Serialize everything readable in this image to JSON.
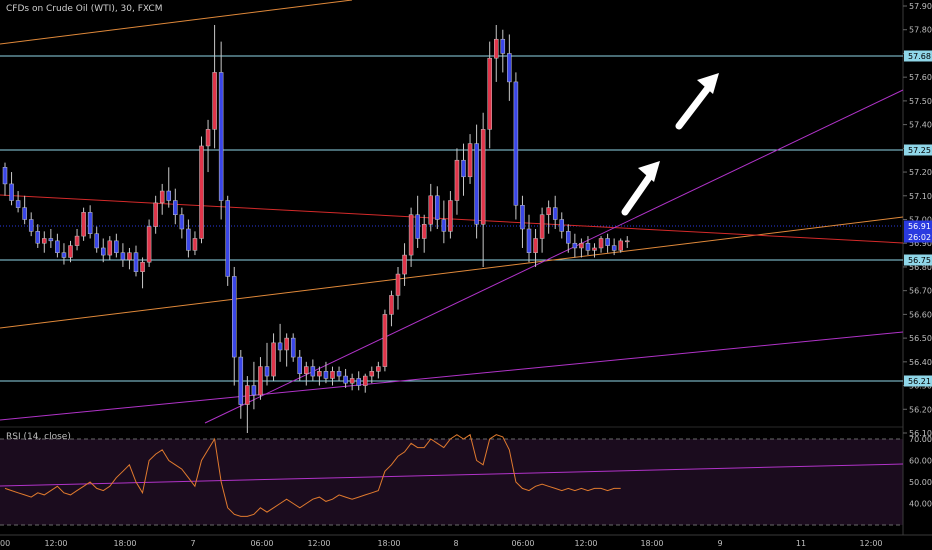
{
  "header": {
    "title": "CFDs on Crude Oil (WTI), 30, FXCM"
  },
  "rsi": {
    "label": "RSI (14, close)",
    "ticks": [
      "70.00",
      "60.00",
      "50.00",
      "40.00"
    ]
  },
  "colors": {
    "up": "#e0354a",
    "down": "#3a46e8",
    "background": "#000000",
    "rsi_line": "#e07a2e",
    "rsi_band": "#1b0c1e",
    "rsi_trend": "#b033c8",
    "trend_red": "#d42a2a",
    "trend_orange": "#e0893a",
    "trend_purple": "#b033c8",
    "hline": "#8fd6e8",
    "current": "#2a3ae0",
    "arrow": "#ffffff"
  },
  "chart_data": {
    "type": "candlestick",
    "ylim": [
      56.03,
      57.94
    ],
    "y_ticks": [
      "57.90",
      "57.80",
      "57.70",
      "57.60",
      "57.50",
      "57.40",
      "57.30",
      "57.20",
      "57.10",
      "57.00",
      "56.90",
      "56.80",
      "56.70",
      "56.60",
      "56.50",
      "56.40",
      "56.30",
      "56.20",
      "56.10"
    ],
    "x_ticks": [
      "00",
      "12:00",
      "18:00",
      "7",
      "06:00",
      "12:00",
      "18:00",
      "8",
      "06:00",
      "12:00",
      "18:00",
      "9",
      "11",
      "12:00"
    ],
    "price_tags": [
      "57.68",
      "57.25",
      "56.91",
      "26:02",
      "56.75",
      "56.21"
    ],
    "candles": [
      [
        57.22,
        57.24,
        57.1,
        57.15
      ],
      [
        57.15,
        57.2,
        57.06,
        57.08
      ],
      [
        57.08,
        57.12,
        57.03,
        57.05
      ],
      [
        57.05,
        57.1,
        56.98,
        57.0
      ],
      [
        57.0,
        57.03,
        56.93,
        56.95
      ],
      [
        56.95,
        56.98,
        56.88,
        56.9
      ],
      [
        56.9,
        56.95,
        56.86,
        56.92
      ],
      [
        56.92,
        56.96,
        56.88,
        56.91
      ],
      [
        56.91,
        56.94,
        56.84,
        56.86
      ],
      [
        56.86,
        56.9,
        56.81,
        56.84
      ],
      [
        56.84,
        56.91,
        56.82,
        56.89
      ],
      [
        56.89,
        56.96,
        56.87,
        56.93
      ],
      [
        56.93,
        57.05,
        56.91,
        57.03
      ],
      [
        57.03,
        57.06,
        56.92,
        56.94
      ],
      [
        56.94,
        56.97,
        56.86,
        56.88
      ],
      [
        56.88,
        56.92,
        56.82,
        56.85
      ],
      [
        56.85,
        56.93,
        56.83,
        56.91
      ],
      [
        56.91,
        56.94,
        56.84,
        56.86
      ],
      [
        56.86,
        56.9,
        56.8,
        56.83
      ],
      [
        56.83,
        56.88,
        56.79,
        56.86
      ],
      [
        56.86,
        56.89,
        56.76,
        56.78
      ],
      [
        56.78,
        56.84,
        56.71,
        56.82
      ],
      [
        56.82,
        57.0,
        56.8,
        56.97
      ],
      [
        56.97,
        57.1,
        56.94,
        57.07
      ],
      [
        57.07,
        57.15,
        57.02,
        57.12
      ],
      [
        57.12,
        57.22,
        57.05,
        57.08
      ],
      [
        57.08,
        57.13,
        56.98,
        57.02
      ],
      [
        57.02,
        57.05,
        56.92,
        56.96
      ],
      [
        56.96,
        57.0,
        56.84,
        56.87
      ],
      [
        56.87,
        56.95,
        56.85,
        56.92
      ],
      [
        56.92,
        57.35,
        56.9,
        57.31
      ],
      [
        57.31,
        57.42,
        57.2,
        57.38
      ],
      [
        57.38,
        57.82,
        57.3,
        57.62
      ],
      [
        57.62,
        57.75,
        57.0,
        57.08
      ],
      [
        57.08,
        57.1,
        56.72,
        56.76
      ],
      [
        56.76,
        56.8,
        56.3,
        56.42
      ],
      [
        56.42,
        56.45,
        56.16,
        56.22
      ],
      [
        56.22,
        56.34,
        56.1,
        56.3
      ],
      [
        56.3,
        56.4,
        56.2,
        56.26
      ],
      [
        56.26,
        56.42,
        56.24,
        56.38
      ],
      [
        56.38,
        56.48,
        56.3,
        56.34
      ],
      [
        56.34,
        56.52,
        56.32,
        56.48
      ],
      [
        56.48,
        56.56,
        56.4,
        56.45
      ],
      [
        56.45,
        56.52,
        56.38,
        56.5
      ],
      [
        56.5,
        56.52,
        56.4,
        56.42
      ],
      [
        56.42,
        56.45,
        56.32,
        56.35
      ],
      [
        56.35,
        56.4,
        56.3,
        56.38
      ],
      [
        56.38,
        56.41,
        56.32,
        56.34
      ],
      [
        56.34,
        56.38,
        56.3,
        56.36
      ],
      [
        56.36,
        56.4,
        56.31,
        56.33
      ],
      [
        56.33,
        56.38,
        56.3,
        56.36
      ],
      [
        56.36,
        56.38,
        56.32,
        56.34
      ],
      [
        56.34,
        56.37,
        56.29,
        56.31
      ],
      [
        56.31,
        56.35,
        56.28,
        56.33
      ],
      [
        56.33,
        56.36,
        56.28,
        56.3
      ],
      [
        56.3,
        56.35,
        56.27,
        56.34
      ],
      [
        56.34,
        56.38,
        56.31,
        56.36
      ],
      [
        56.36,
        56.4,
        56.33,
        56.38
      ],
      [
        56.38,
        56.62,
        56.36,
        56.6
      ],
      [
        56.6,
        56.7,
        56.55,
        56.68
      ],
      [
        56.68,
        56.8,
        56.62,
        56.77
      ],
      [
        56.77,
        56.9,
        56.72,
        56.85
      ],
      [
        56.85,
        57.05,
        56.8,
        57.02
      ],
      [
        57.02,
        57.1,
        56.88,
        56.92
      ],
      [
        56.92,
        57.02,
        56.86,
        56.98
      ],
      [
        56.98,
        57.15,
        56.95,
        57.1
      ],
      [
        57.1,
        57.14,
        56.96,
        57.0
      ],
      [
        57.0,
        57.08,
        56.9,
        56.95
      ],
      [
        56.95,
        57.12,
        56.92,
        57.08
      ],
      [
        57.08,
        57.3,
        57.02,
        57.25
      ],
      [
        57.25,
        57.32,
        57.1,
        57.18
      ],
      [
        57.18,
        57.36,
        57.15,
        57.32
      ],
      [
        57.32,
        57.4,
        56.92,
        56.98
      ],
      [
        56.98,
        57.45,
        56.8,
        57.38
      ],
      [
        57.38,
        57.75,
        57.3,
        57.68
      ],
      [
        57.68,
        57.82,
        57.58,
        57.76
      ],
      [
        57.76,
        57.8,
        57.62,
        57.7
      ],
      [
        57.7,
        57.78,
        57.5,
        57.58
      ],
      [
        57.58,
        57.62,
        57.0,
        57.06
      ],
      [
        57.06,
        57.1,
        56.88,
        56.96
      ],
      [
        56.96,
        57.02,
        56.82,
        56.86
      ],
      [
        56.86,
        56.96,
        56.8,
        56.92
      ],
      [
        56.92,
        57.05,
        56.86,
        57.02
      ],
      [
        57.02,
        57.08,
        56.94,
        57.05
      ],
      [
        57.05,
        57.1,
        56.96,
        57.0
      ],
      [
        57.0,
        57.03,
        56.92,
        56.95
      ],
      [
        56.95,
        56.98,
        56.86,
        56.9
      ],
      [
        56.9,
        56.94,
        56.84,
        56.88
      ],
      [
        56.88,
        56.92,
        56.84,
        56.9
      ],
      [
        56.9,
        56.93,
        56.85,
        56.87
      ],
      [
        56.87,
        56.9,
        56.84,
        56.88
      ],
      [
        56.88,
        56.93,
        56.86,
        56.92
      ],
      [
        56.92,
        56.94,
        56.86,
        56.89
      ],
      [
        56.89,
        56.92,
        56.85,
        56.87
      ],
      [
        56.87,
        56.92,
        56.86,
        56.91
      ],
      [
        56.91,
        56.93,
        56.88,
        56.91
      ]
    ],
    "rsi_values": [
      47,
      46,
      45,
      44,
      43,
      45,
      44,
      46,
      48,
      45,
      44,
      46,
      48,
      50,
      47,
      46,
      48,
      52,
      55,
      58,
      50,
      45,
      60,
      63,
      65,
      60,
      58,
      56,
      52,
      48,
      60,
      65,
      70,
      50,
      38,
      35,
      34,
      34,
      35,
      38,
      36,
      38,
      40,
      42,
      40,
      38,
      40,
      42,
      43,
      41,
      42,
      44,
      43,
      42,
      43,
      44,
      45,
      46,
      55,
      58,
      62,
      64,
      68,
      66,
      66,
      70,
      68,
      66,
      70,
      72,
      70,
      72,
      60,
      58,
      70,
      72,
      71,
      65,
      50,
      47,
      46,
      48,
      49,
      48,
      47,
      46,
      47,
      46,
      47,
      46,
      47,
      47,
      46,
      47,
      47
    ]
  }
}
